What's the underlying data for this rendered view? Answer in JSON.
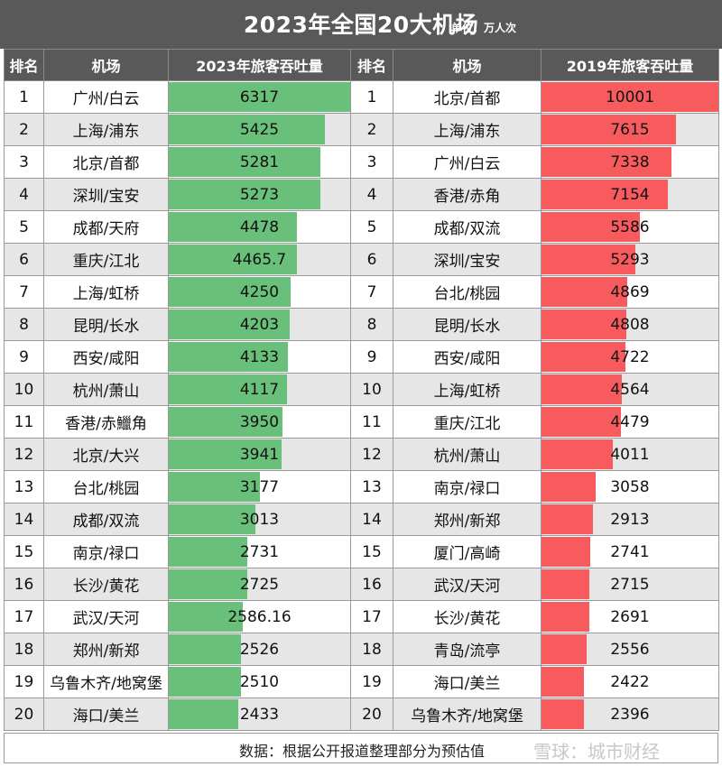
{
  "header": {
    "title": "2023年全国20大机场",
    "unit": "单位：万人次"
  },
  "columns": {
    "rank_left": "排名",
    "airport_left": "机场",
    "value_left": "2023年旅客吞吐量",
    "rank_right": "排名",
    "airport_right": "机场",
    "value_right": "2019年旅客吞吐量"
  },
  "footer": {
    "note": "数据：根据公开报道整理部分为预估值",
    "watermark": "雪球：城市财经"
  },
  "colors": {
    "bar_2023": "#69c07a",
    "bar_2019": "#f75b5e",
    "header_bg": "#595959",
    "alt_row": "#e6e6e6"
  },
  "chart_data": [
    {
      "type": "bar",
      "title": "2023年旅客吞吐量",
      "categories": [
        "广州/白云",
        "上海/浦东",
        "北京/首都",
        "深圳/宝安",
        "成都/天府",
        "重庆/江北",
        "上海/虹桥",
        "昆明/长水",
        "西安/咸阳",
        "杭州/萧山",
        "香港/赤鱲角",
        "北京/大兴",
        "台北/桃园",
        "成都/双流",
        "南京/禄口",
        "长沙/黄花",
        "武汉/天河",
        "郑州/新郑",
        "乌鲁木齐/地窝堡",
        "海口/美兰"
      ],
      "ranks": [
        "1",
        "2",
        "3",
        "4",
        "5",
        "6",
        "7",
        "8",
        "9",
        "10",
        "11",
        "12",
        "13",
        "14",
        "15",
        "16",
        "17",
        "18",
        "19",
        "20"
      ],
      "values": [
        6317,
        5425,
        5281,
        5273,
        4478,
        4465.7,
        4250,
        4203,
        4133,
        4117,
        3950,
        3941,
        3177,
        3013,
        2731,
        2725,
        2586.16,
        2526,
        2510,
        2433
      ],
      "labels": [
        "6317",
        "5425",
        "5281",
        "5273",
        "4478",
        "4465.7",
        "4250",
        "4203",
        "4133",
        "4117",
        "3950",
        "3941",
        "3177",
        "3013",
        "2731",
        "2725",
        "2586.16",
        "2526",
        "2510",
        "2433"
      ],
      "xlim": [
        0,
        6317
      ]
    },
    {
      "type": "bar",
      "title": "2019年旅客吞吐量",
      "categories": [
        "北京/首都",
        "上海/浦东",
        "广州/白云",
        "香港/赤角",
        "成都/双流",
        "深圳/宝安",
        "台北/桃园",
        "昆明/长水",
        "西安/咸阳",
        "上海/虹桥",
        "重庆/江北",
        "杭州/萧山",
        "南京/禄口",
        "郑州/新郑",
        "厦门/高崎",
        "武汉/天河",
        "长沙/黄花",
        "青岛/流亭",
        "海口/美兰",
        "乌鲁木齐/地窝堡"
      ],
      "ranks": [
        "1",
        "2",
        "3",
        "4",
        "5",
        "6",
        "7",
        "8",
        "9",
        "10",
        "11",
        "12",
        "13",
        "14",
        "15",
        "16",
        "17",
        "18",
        "19",
        "20"
      ],
      "values": [
        10001,
        7615,
        7338,
        7154,
        5586,
        5293,
        4869,
        4808,
        4722,
        4564,
        4479,
        4011,
        3058,
        2913,
        2741,
        2715,
        2691,
        2556,
        2422,
        2396
      ],
      "labels": [
        "10001",
        "7615",
        "7338",
        "7154",
        "5586",
        "5293",
        "4869",
        "4808",
        "4722",
        "4564",
        "4479",
        "4011",
        "3058",
        "2913",
        "2741",
        "2715",
        "2691",
        "2556",
        "2422",
        "2396"
      ],
      "xlim": [
        0,
        10001
      ]
    }
  ]
}
